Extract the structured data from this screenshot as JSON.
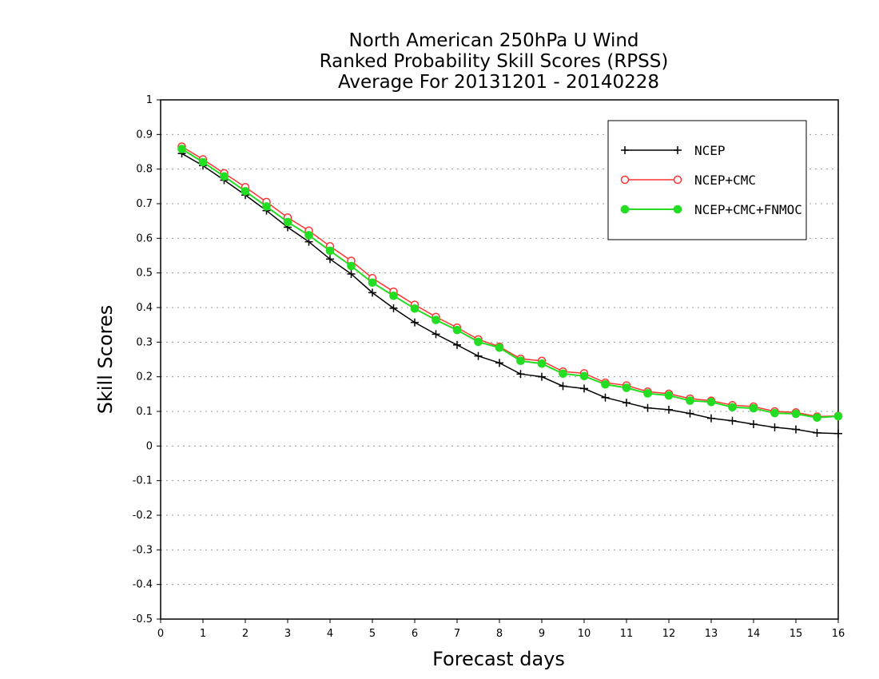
{
  "chart_data": {
    "type": "line",
    "title_lines": [
      "North American 250hPa U Wind",
      "Ranked Probability Skill Scores (RPSS)",
      "Average For 20131201 - 20140228"
    ],
    "xlabel": "Forecast days",
    "ylabel": "Skill Scores",
    "xlim": [
      0,
      16
    ],
    "ylim": [
      -0.5,
      1
    ],
    "x_ticks": [
      "0",
      "1",
      "2",
      "3",
      "4",
      "5",
      "6",
      "7",
      "8",
      "9",
      "10",
      "11",
      "12",
      "13",
      "14",
      "15",
      "16"
    ],
    "y_ticks": [
      "1",
      "0.9",
      "0.8",
      "0.7",
      "0.6",
      "0.5",
      "0.4",
      "0.3",
      "0.2",
      "0.1",
      "0",
      "-0.1",
      "-0.2",
      "-0.3",
      "-0.4",
      "-0.5"
    ],
    "grid": "horizontal dotted",
    "legend_position": "top-right",
    "x": [
      0.5,
      1,
      1.5,
      2,
      2.5,
      3,
      3.5,
      4,
      4.5,
      5,
      5.5,
      6,
      6.5,
      7,
      7.5,
      8,
      8.5,
      9,
      9.5,
      10,
      10.5,
      11,
      11.5,
      12,
      12.5,
      13,
      13.5,
      14,
      14.5,
      15,
      15.5,
      16
    ],
    "series": [
      {
        "name": "NCEP",
        "color": "#000000",
        "marker": "plus",
        "values": [
          0.845,
          0.81,
          0.768,
          0.725,
          0.68,
          0.632,
          0.59,
          0.54,
          0.497,
          0.443,
          0.398,
          0.357,
          0.323,
          0.292,
          0.26,
          0.24,
          0.208,
          0.2,
          0.173,
          0.166,
          0.14,
          0.125,
          0.11,
          0.105,
          0.094,
          0.08,
          0.073,
          0.063,
          0.054,
          0.048,
          0.038,
          0.036
        ]
      },
      {
        "name": "NCEP+CMC",
        "color": "#ff3333",
        "marker": "open-circle",
        "values": [
          0.865,
          0.828,
          0.788,
          0.748,
          0.705,
          0.66,
          0.622,
          0.577,
          0.535,
          0.485,
          0.446,
          0.408,
          0.373,
          0.342,
          0.308,
          0.287,
          0.252,
          0.246,
          0.215,
          0.21,
          0.183,
          0.175,
          0.157,
          0.151,
          0.137,
          0.131,
          0.118,
          0.114,
          0.1,
          0.097,
          0.085,
          0.087
        ]
      },
      {
        "name": "NCEP+CMC+FNMOC",
        "color": "#22dd22",
        "marker": "filled-circle",
        "values": [
          0.858,
          0.82,
          0.779,
          0.736,
          0.692,
          0.647,
          0.609,
          0.564,
          0.52,
          0.472,
          0.434,
          0.397,
          0.364,
          0.335,
          0.301,
          0.284,
          0.246,
          0.238,
          0.209,
          0.202,
          0.178,
          0.168,
          0.152,
          0.146,
          0.131,
          0.127,
          0.112,
          0.109,
          0.095,
          0.093,
          0.082,
          0.086
        ]
      }
    ]
  }
}
